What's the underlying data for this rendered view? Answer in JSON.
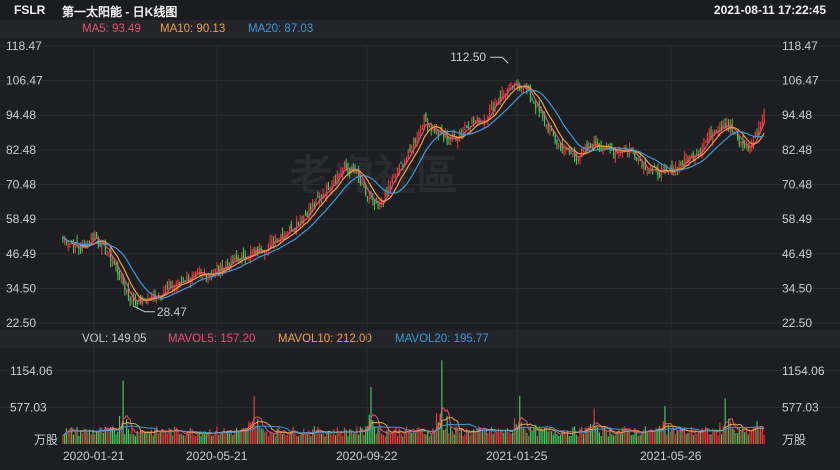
{
  "header": {
    "symbol": "FSLR",
    "name": "第一太阳能 - 日K线图",
    "timestamp": "2021-08-11 17:22:45"
  },
  "ma_bar": {
    "ma5": {
      "label": "MA5: 93.49",
      "color": "#e6506e"
    },
    "ma10": {
      "label": "MA10: 90.13",
      "color": "#f2a13a"
    },
    "ma20": {
      "label": "MA20: 87.03",
      "color": "#3a9ad9"
    }
  },
  "vol_bar": {
    "vol": {
      "label": "VOL: 149.05",
      "color": "#c9ccd1"
    },
    "mavol5": {
      "label": "MAVOL5: 157.20",
      "color": "#e6506e"
    },
    "mavol10": {
      "label": "MAVOL10: 212.00",
      "color": "#f2a13a"
    },
    "mavol20": {
      "label": "MAVOL20: 195.77",
      "color": "#3a9ad9"
    }
  },
  "watermark": "老虎社區",
  "chart_data": {
    "type": "candlestick",
    "price_axis": {
      "ticks": [
        "118.47",
        "106.47",
        "94.48",
        "82.48",
        "70.48",
        "58.49",
        "46.49",
        "34.50",
        "22.50"
      ],
      "ylim": [
        22.5,
        118.47
      ]
    },
    "volume_axis": {
      "ticks": [
        "1154.06",
        "577.03"
      ],
      "unit": "万股",
      "ylim": [
        0,
        1450
      ]
    },
    "x_ticks": [
      "2020-01-21",
      "2020-05-21",
      "2020-09-22",
      "2021-01-25",
      "2021-05-26"
    ],
    "annotations": {
      "high": "112.50",
      "low": "28.47"
    },
    "colors": {
      "up": "#ee3b3b",
      "down": "#3fcf5a",
      "ma5": "#e6506e",
      "ma10": "#f2a13a",
      "ma20": "#3a9ad9",
      "grid": "#2c2d33"
    },
    "trend_anchors": [
      [
        0,
        52
      ],
      [
        10,
        48
      ],
      [
        18,
        53
      ],
      [
        28,
        44
      ],
      [
        38,
        31
      ],
      [
        44,
        30
      ],
      [
        55,
        33
      ],
      [
        70,
        38
      ],
      [
        85,
        40
      ],
      [
        100,
        45
      ],
      [
        115,
        49
      ],
      [
        130,
        56
      ],
      [
        140,
        62
      ],
      [
        150,
        70
      ],
      [
        158,
        76
      ],
      [
        165,
        75
      ],
      [
        172,
        66
      ],
      [
        178,
        62
      ],
      [
        186,
        72
      ],
      [
        196,
        82
      ],
      [
        204,
        93
      ],
      [
        212,
        88
      ],
      [
        220,
        86
      ],
      [
        230,
        92
      ],
      [
        238,
        93
      ],
      [
        245,
        100
      ],
      [
        252,
        104
      ],
      [
        260,
        105
      ],
      [
        266,
        99
      ],
      [
        272,
        92
      ],
      [
        280,
        84
      ],
      [
        290,
        80
      ],
      [
        300,
        85
      ],
      [
        310,
        82
      ],
      [
        320,
        83
      ],
      [
        330,
        76
      ],
      [
        340,
        74
      ],
      [
        350,
        78
      ],
      [
        360,
        83
      ],
      [
        368,
        90
      ],
      [
        375,
        92
      ],
      [
        382,
        85
      ],
      [
        388,
        83
      ],
      [
        396,
        95
      ]
    ],
    "volume_spikes": [
      [
        34,
        1000
      ],
      [
        108,
        760
      ],
      [
        174,
        900
      ],
      [
        214,
        1320
      ],
      [
        258,
        760
      ],
      [
        300,
        560
      ],
      [
        340,
        600
      ],
      [
        374,
        720
      ],
      [
        392,
        360
      ]
    ]
  }
}
